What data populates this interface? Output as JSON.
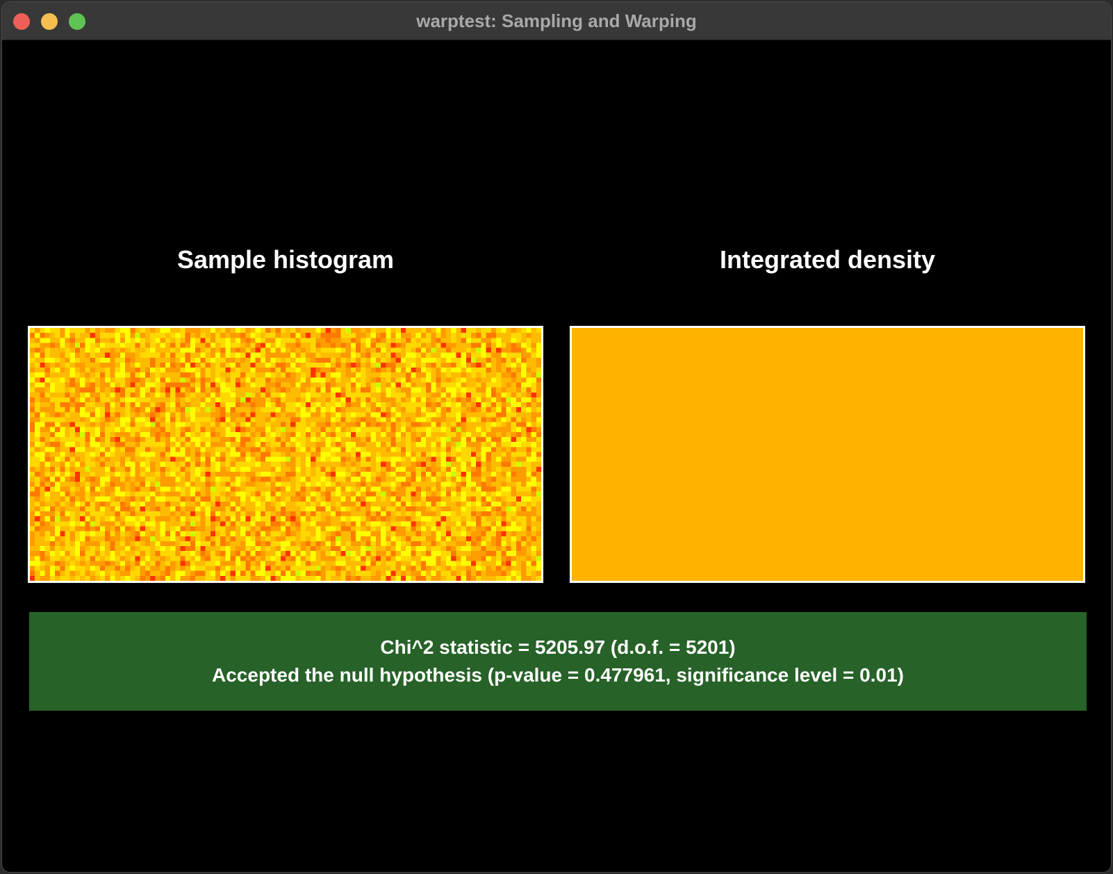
{
  "window": {
    "title": "warptest: Sampling and Warping"
  },
  "panels": {
    "left_title": "Sample histogram",
    "right_title": "Integrated density"
  },
  "colors": {
    "window_bg": "#000000",
    "titlebar_bg": "#383838",
    "density_fill": "#ffb300",
    "result_bg": "#276228",
    "frame_border": "#ffffff"
  },
  "histogram": {
    "columns": 102,
    "rows": 51,
    "palette": [
      "#ffff00",
      "#ffd800",
      "#ffbb00",
      "#ff9c00",
      "#ff7a00",
      "#ff3300",
      "#ccff00"
    ]
  },
  "result": {
    "line1": "Chi^2 statistic = 5205.97 (d.o.f. = 5201)",
    "line2": "Accepted the null hypothesis (p-value = 0.477961, significance level = 0.01)"
  }
}
